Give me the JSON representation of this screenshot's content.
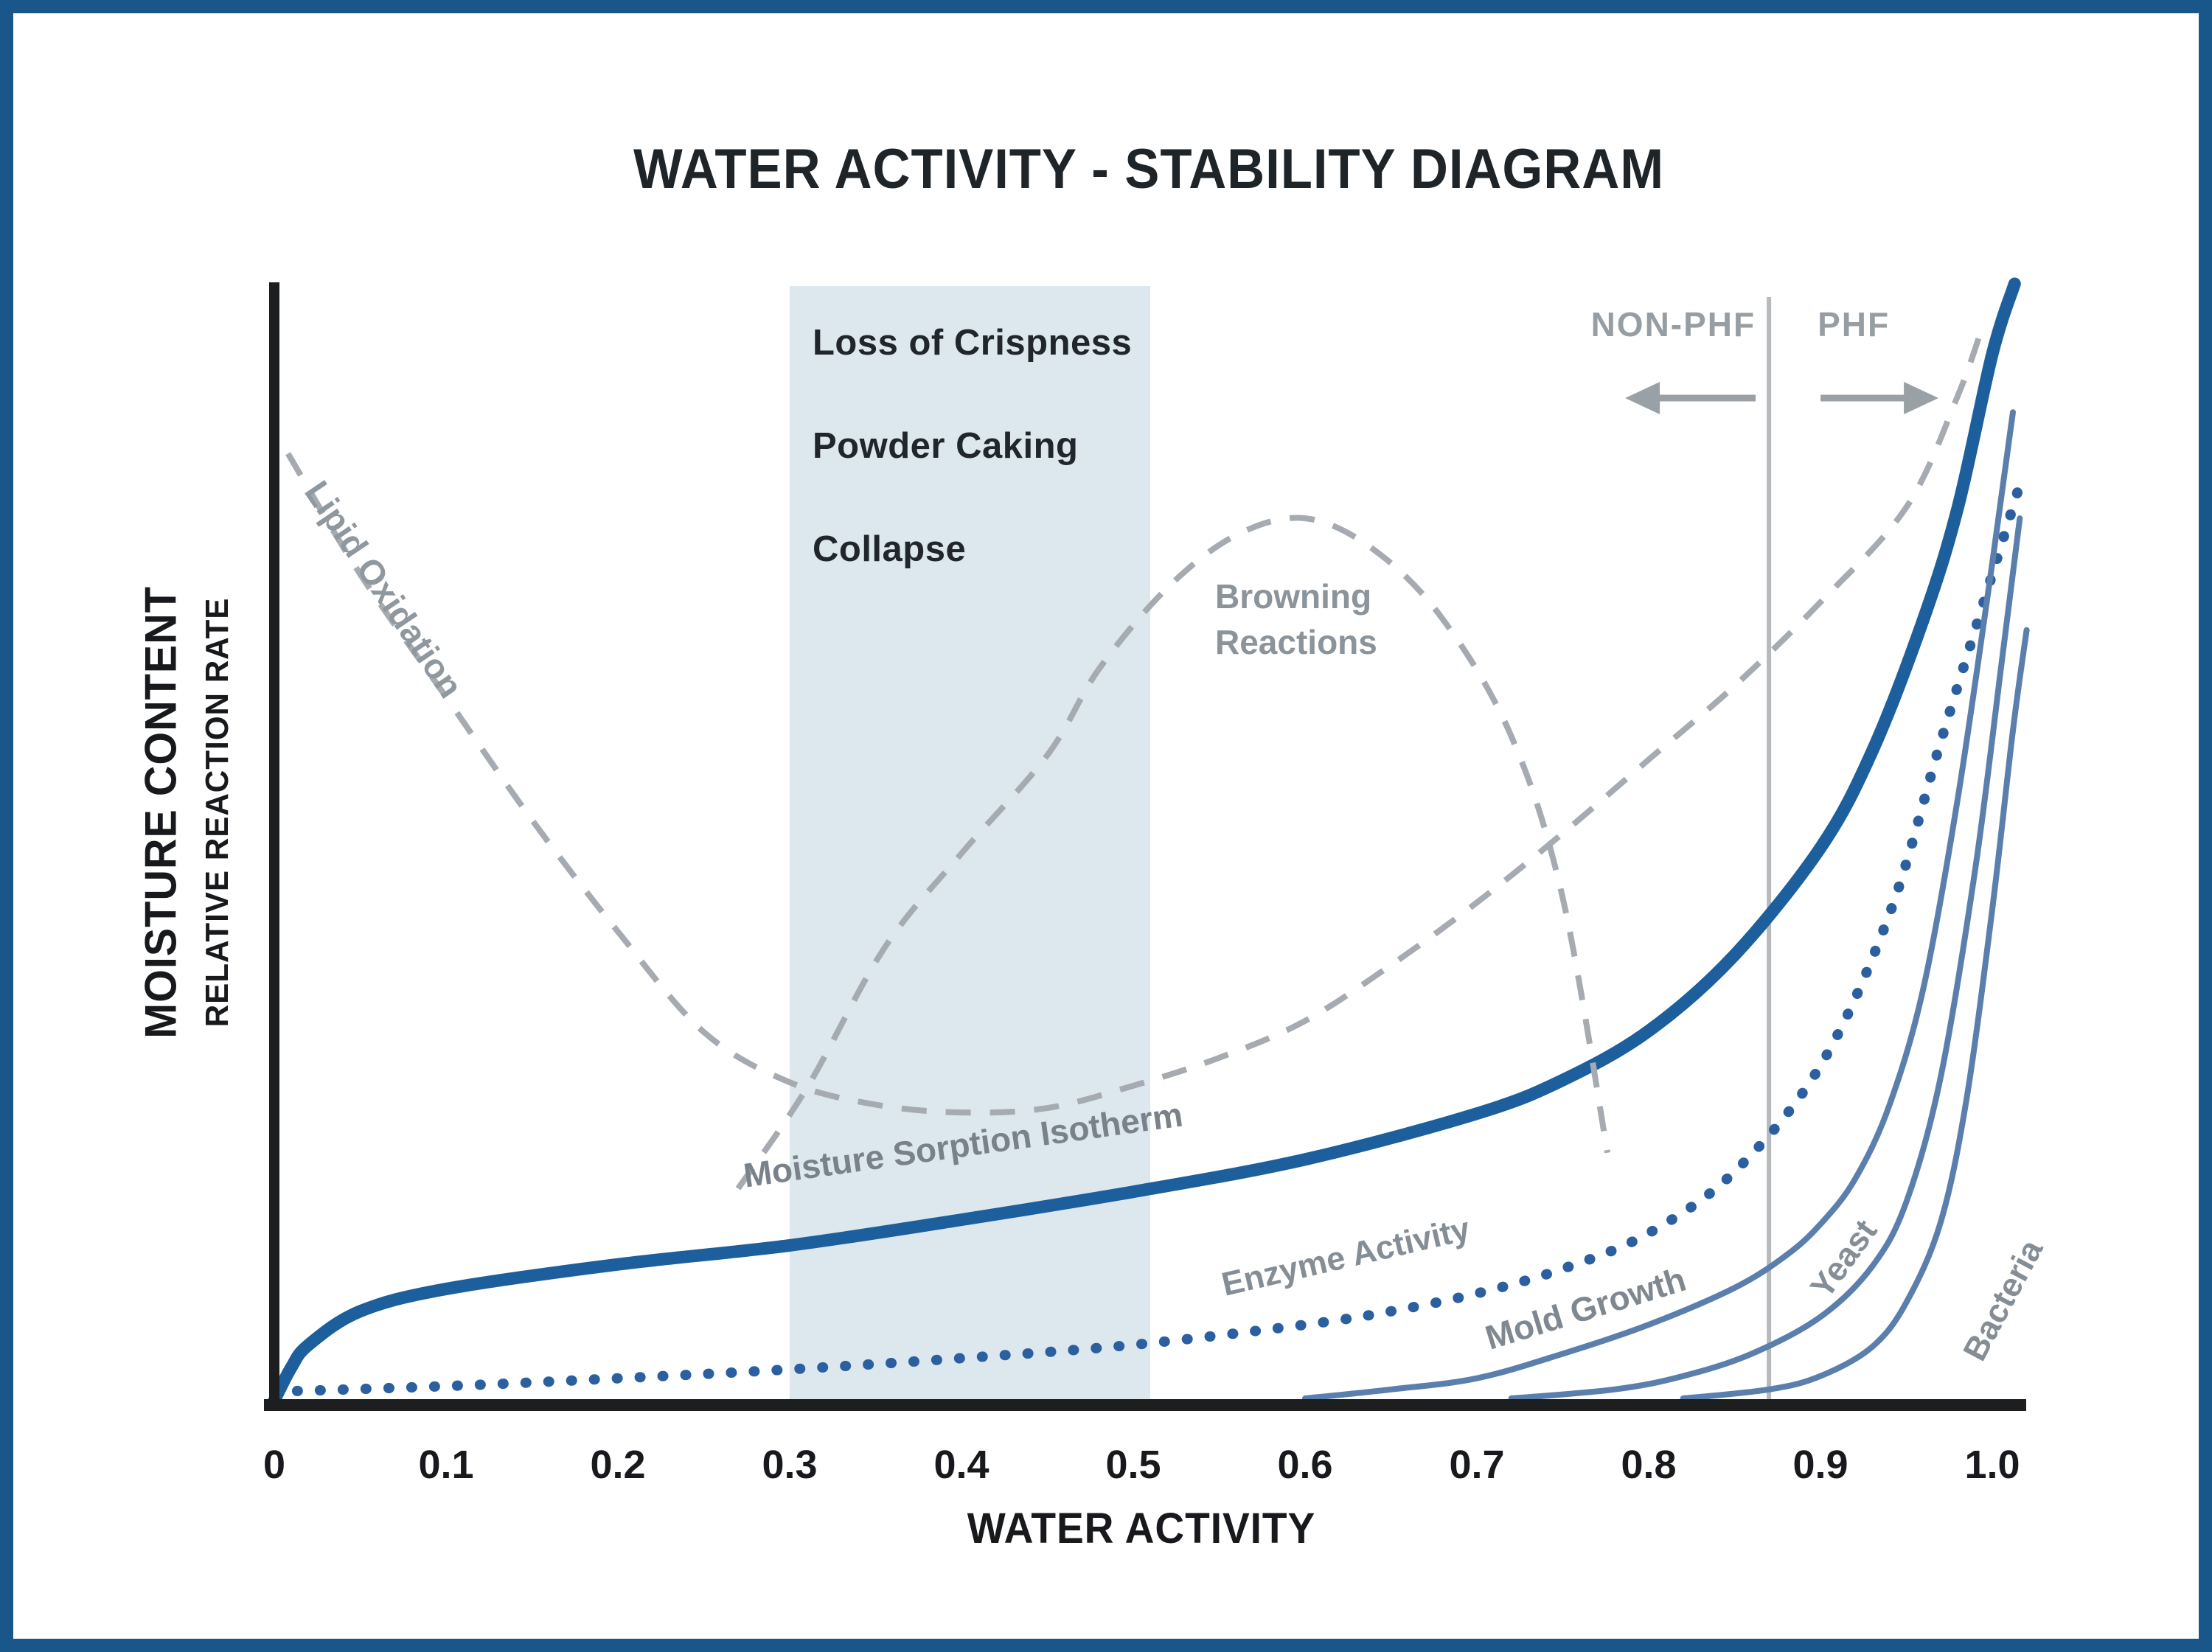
{
  "page": {
    "title": "WATER ACTIVITY - STABILITY DIAGRAM"
  },
  "axes": {
    "x_title": "WATER ACTIVITY",
    "y_title_primary": "MOISTURE CONTENT",
    "y_title_secondary": "RELATIVE REACTION RATE",
    "x_ticks": [
      {
        "value": 0.0,
        "label": "0"
      },
      {
        "value": 0.1,
        "label": "0.1"
      },
      {
        "value": 0.2,
        "label": "0.2"
      },
      {
        "value": 0.3,
        "label": "0.3"
      },
      {
        "value": 0.4,
        "label": "0.4"
      },
      {
        "value": 0.5,
        "label": "0.5"
      },
      {
        "value": 0.6,
        "label": "0.6"
      },
      {
        "value": 0.7,
        "label": "0.7"
      },
      {
        "value": 0.8,
        "label": "0.8"
      },
      {
        "value": 0.9,
        "label": "0.9"
      },
      {
        "value": 1.0,
        "label": "1.0"
      }
    ]
  },
  "zones": {
    "stability_band": {
      "x_start": 0.3,
      "x_end": 0.51,
      "fill": "#dde8ee",
      "labels": [
        "Loss of Crispness",
        "Powder Caking",
        "Collapse"
      ]
    },
    "phf_divider": {
      "x": 0.87,
      "left_label": "NON-PHF",
      "right_label": "PHF",
      "line_color": "#b6babd",
      "arrow_color": "#9aa1a6"
    }
  },
  "colors": {
    "frame": "#19568a",
    "axis": "#1c1e20",
    "isotherm_blue": "#1d5f9c",
    "dotted_blue": "#2b5f9f",
    "microbial_blue": "#5b7fad",
    "dashed_gray": "#a5abb0",
    "gray_text": "#8b939b",
    "dark_text": "#1f2428"
  },
  "chart_data": {
    "type": "line",
    "title": "WATER ACTIVITY - STABILITY DIAGRAM",
    "xlabel": "WATER ACTIVITY",
    "ylabel": "MOISTURE CONTENT / RELATIVE REACTION RATE",
    "x_range": [
      0,
      1.02
    ],
    "y_range": [
      0,
      1
    ],
    "y_units": "relative (unitless)",
    "grid": false,
    "legend": "labels placed along curves",
    "series": [
      {
        "name": "Moisture Sorption Isotherm",
        "style": "solid-thick",
        "color": "#1d5f9c",
        "points": [
          [
            0,
            0
          ],
          [
            0.01,
            0.03
          ],
          [
            0.02,
            0.05
          ],
          [
            0.05,
            0.08
          ],
          [
            0.1,
            0.1
          ],
          [
            0.2,
            0.122
          ],
          [
            0.3,
            0.139
          ],
          [
            0.4,
            0.162
          ],
          [
            0.5,
            0.187
          ],
          [
            0.6,
            0.216
          ],
          [
            0.7,
            0.257
          ],
          [
            0.75,
            0.287
          ],
          [
            0.8,
            0.331
          ],
          [
            0.85,
            0.399
          ],
          [
            0.9,
            0.495
          ],
          [
            0.93,
            0.581
          ],
          [
            0.96,
            0.7
          ],
          [
            0.98,
            0.8
          ],
          [
            1.0,
            0.937
          ],
          [
            1.013,
            1.0
          ]
        ]
      },
      {
        "name": "Lipid Oxidation",
        "style": "dashed",
        "color": "#a5abb0",
        "points": [
          [
            0.008,
            0.848
          ],
          [
            0.05,
            0.74
          ],
          [
            0.1,
            0.63
          ],
          [
            0.15,
            0.52
          ],
          [
            0.2,
            0.42
          ],
          [
            0.25,
            0.33
          ],
          [
            0.3,
            0.285
          ],
          [
            0.35,
            0.265
          ],
          [
            0.4,
            0.258
          ],
          [
            0.45,
            0.262
          ],
          [
            0.5,
            0.282
          ],
          [
            0.55,
            0.307
          ],
          [
            0.6,
            0.34
          ],
          [
            0.65,
            0.39
          ],
          [
            0.7,
            0.446
          ],
          [
            0.75,
            0.508
          ],
          [
            0.8,
            0.574
          ],
          [
            0.85,
            0.64
          ],
          [
            0.9,
            0.715
          ],
          [
            0.95,
            0.8
          ],
          [
            0.98,
            0.9
          ],
          [
            0.995,
            0.965
          ]
        ]
      },
      {
        "name": "Browning Reactions",
        "style": "dashed",
        "color": "#a5abb0",
        "points": [
          [
            0.27,
            0.19
          ],
          [
            0.31,
            0.28
          ],
          [
            0.355,
            0.405
          ],
          [
            0.4,
            0.49
          ],
          [
            0.45,
            0.578
          ],
          [
            0.48,
            0.655
          ],
          [
            0.52,
            0.728
          ],
          [
            0.56,
            0.775
          ],
          [
            0.6,
            0.79
          ],
          [
            0.64,
            0.762
          ],
          [
            0.68,
            0.7
          ],
          [
            0.72,
            0.595
          ],
          [
            0.75,
            0.45
          ],
          [
            0.776,
            0.222
          ]
        ]
      },
      {
        "name": "Enzyme Activity",
        "style": "dotted",
        "color": "#2b5f9f",
        "points": [
          [
            0,
            0.008
          ],
          [
            0.1,
            0.013
          ],
          [
            0.2,
            0.02
          ],
          [
            0.3,
            0.028
          ],
          [
            0.4,
            0.038
          ],
          [
            0.5,
            0.05
          ],
          [
            0.6,
            0.068
          ],
          [
            0.65,
            0.08
          ],
          [
            0.7,
            0.096
          ],
          [
            0.75,
            0.118
          ],
          [
            0.8,
            0.15
          ],
          [
            0.85,
            0.205
          ],
          [
            0.9,
            0.3
          ],
          [
            0.94,
            0.435
          ],
          [
            0.97,
            0.59
          ],
          [
            1.0,
            0.74
          ],
          [
            1.018,
            0.83
          ]
        ]
      },
      {
        "name": "Mold Growth",
        "style": "solid-thin",
        "color": "#5b7fad",
        "points": [
          [
            0.6,
            0.002
          ],
          [
            0.65,
            0.01
          ],
          [
            0.7,
            0.02
          ],
          [
            0.75,
            0.042
          ],
          [
            0.8,
            0.068
          ],
          [
            0.85,
            0.101
          ],
          [
            0.88,
            0.13
          ],
          [
            0.9,
            0.158
          ],
          [
            0.92,
            0.198
          ],
          [
            0.94,
            0.264
          ],
          [
            0.96,
            0.37
          ],
          [
            0.98,
            0.54
          ],
          [
            1.0,
            0.75
          ],
          [
            1.012,
            0.885
          ]
        ]
      },
      {
        "name": "Yeast",
        "style": "solid-thin",
        "color": "#5b7fad",
        "points": [
          [
            0.72,
            0.002
          ],
          [
            0.78,
            0.01
          ],
          [
            0.82,
            0.022
          ],
          [
            0.86,
            0.042
          ],
          [
            0.9,
            0.075
          ],
          [
            0.93,
            0.12
          ],
          [
            0.95,
            0.178
          ],
          [
            0.97,
            0.29
          ],
          [
            0.99,
            0.475
          ],
          [
            1.005,
            0.655
          ],
          [
            1.016,
            0.79
          ]
        ]
      },
      {
        "name": "Bacteria",
        "style": "solid-thin",
        "color": "#5b7fad",
        "points": [
          [
            0.82,
            0.002
          ],
          [
            0.87,
            0.01
          ],
          [
            0.9,
            0.022
          ],
          [
            0.93,
            0.048
          ],
          [
            0.95,
            0.088
          ],
          [
            0.97,
            0.16
          ],
          [
            0.985,
            0.27
          ],
          [
            1.0,
            0.44
          ],
          [
            1.012,
            0.6
          ],
          [
            1.02,
            0.69
          ]
        ]
      }
    ]
  }
}
